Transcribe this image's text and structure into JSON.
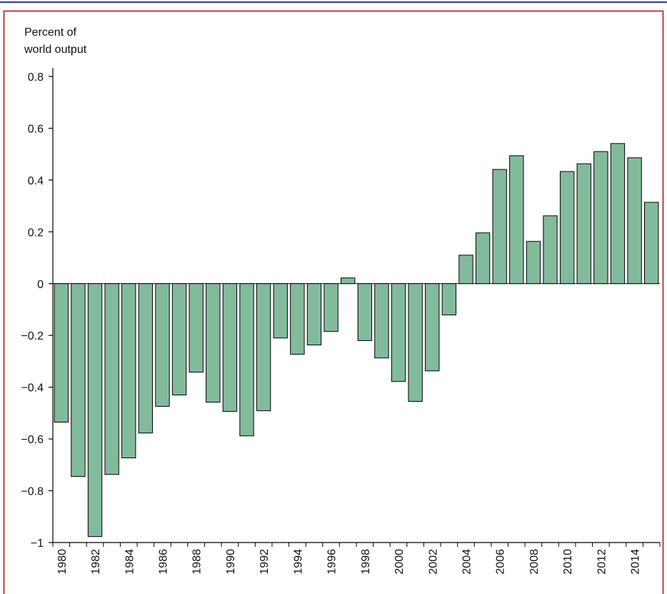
{
  "chart_data": {
    "type": "bar",
    "y_label": [
      "Percent of",
      "world output"
    ],
    "categories": [
      "1980",
      null,
      "1982",
      null,
      "1984",
      null,
      "1986",
      null,
      "1988",
      null,
      "1990",
      null,
      "1992",
      null,
      "1994",
      null,
      "1996",
      null,
      "1998",
      null,
      "2000",
      null,
      "2002",
      null,
      "2004",
      null,
      "2006",
      null,
      "2008",
      null,
      "2010",
      null,
      "2012",
      null,
      "2014",
      null
    ],
    "values": [
      -0.535,
      -0.745,
      -0.977,
      -0.737,
      -0.673,
      -0.577,
      -0.474,
      -0.43,
      -0.342,
      -0.458,
      -0.494,
      -0.588,
      -0.491,
      -0.21,
      -0.273,
      -0.237,
      -0.185,
      0.022,
      -0.22,
      -0.287,
      -0.378,
      -0.455,
      -0.337,
      -0.121,
      0.11,
      0.196,
      0.441,
      0.494,
      0.163,
      0.262,
      0.433,
      0.463,
      0.51,
      0.541,
      0.486,
      0.314
    ],
    "color": "#82bb9b",
    "ylim": [
      -1,
      0.8
    ],
    "yticks": [
      0.8,
      0.6,
      0.4,
      0.2,
      0,
      -0.2,
      -0.4,
      -0.6,
      -0.8,
      -1
    ]
  }
}
